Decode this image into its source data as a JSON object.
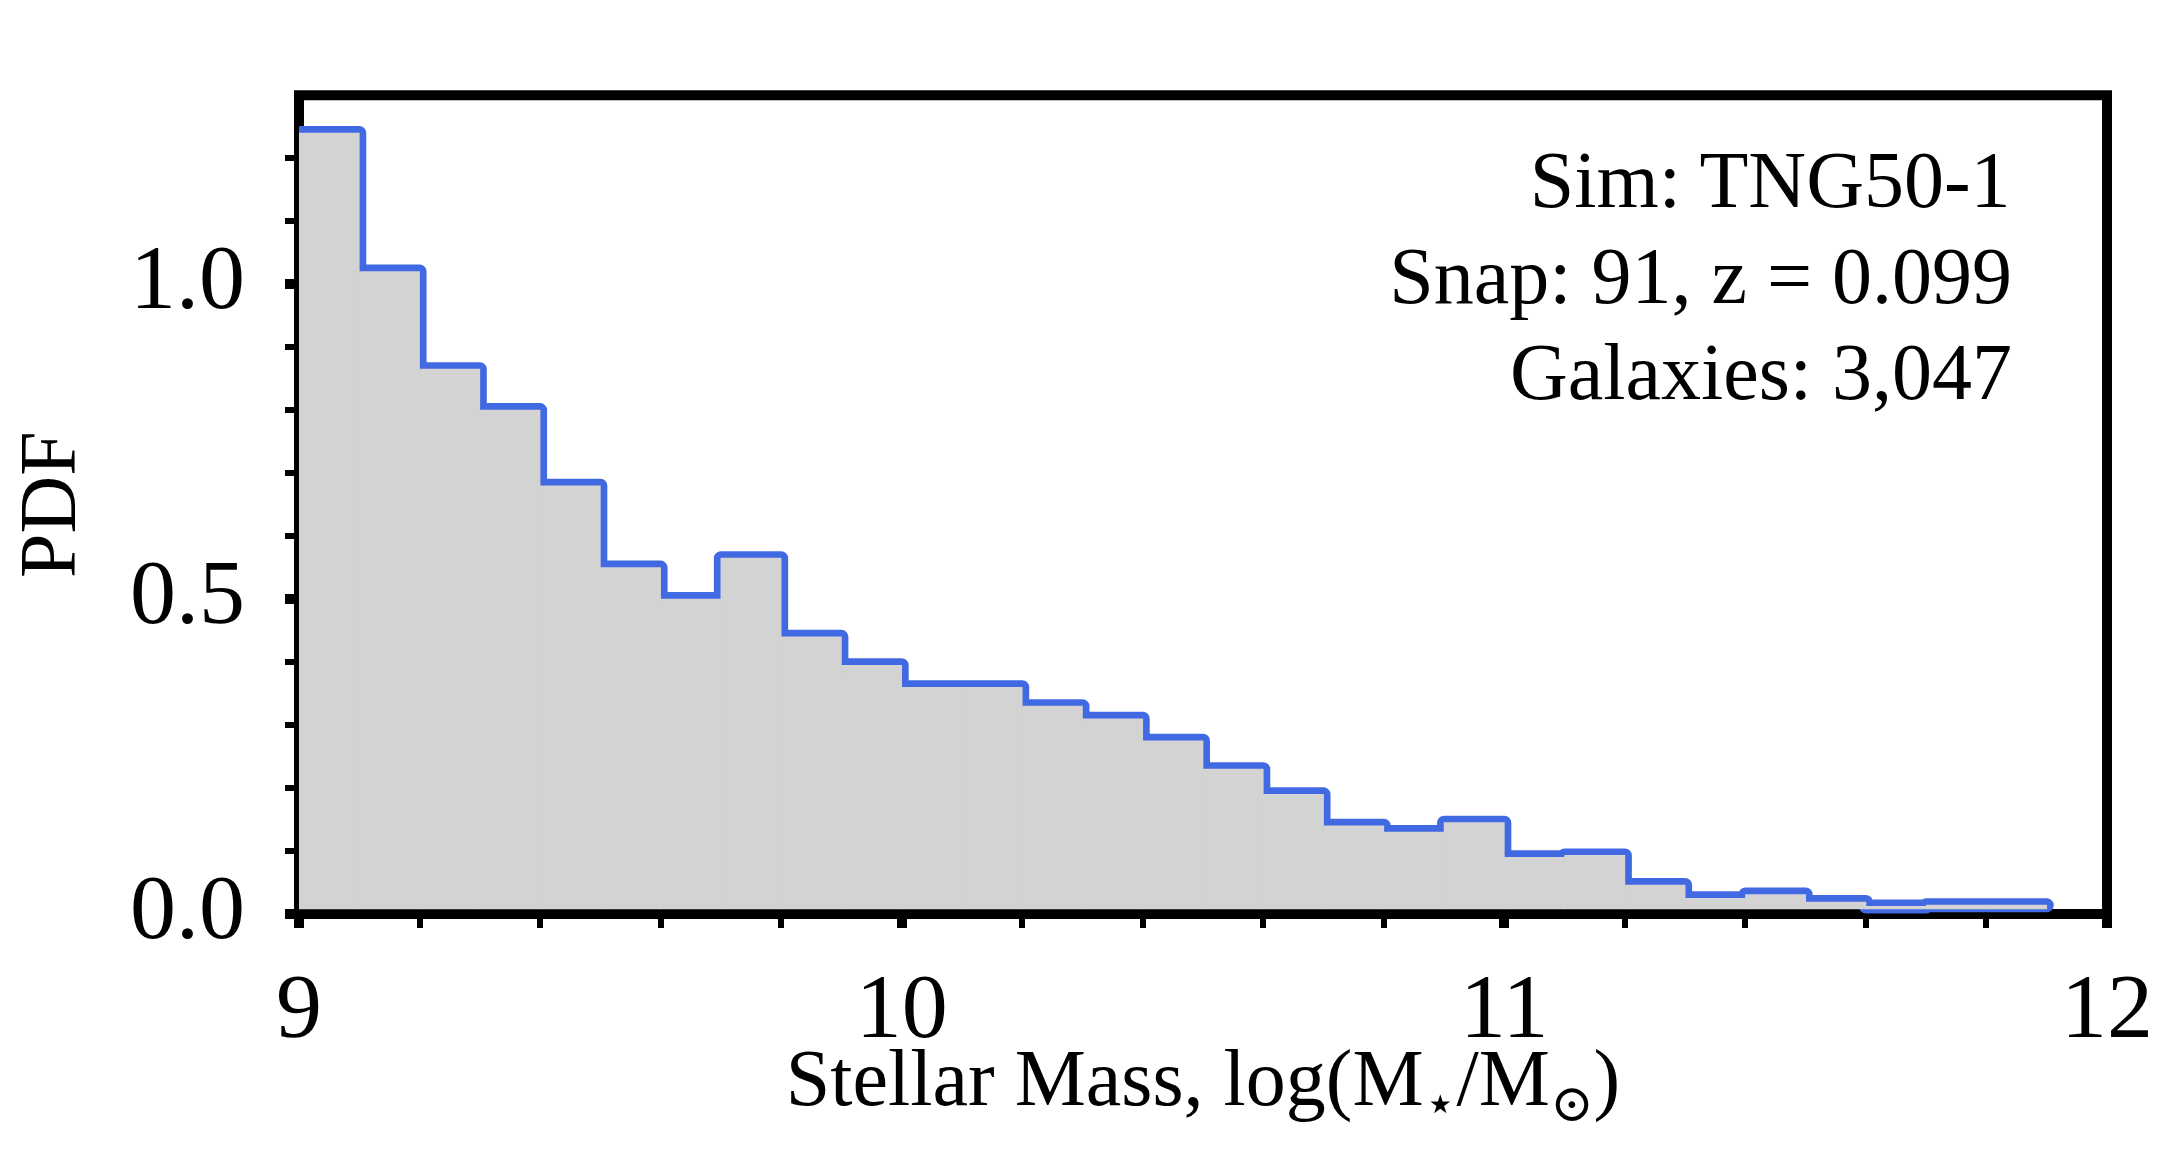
{
  "chart_data": {
    "type": "histogram",
    "xlabel": "Stellar Mass, log(M$_{⋆}$/M$_{⊙}$)",
    "ylabel": "PDF",
    "annotations": [
      "Sim: TNG50-1",
      "Snap: 91, z = 0.099",
      "Galaxies: 3,047"
    ],
    "series": [
      {
        "type": "histogram",
        "color": "#d3d3d3",
        "bins": [
          9.0,
          9.1,
          9.2,
          9.3,
          9.4,
          9.5,
          9.6,
          9.7,
          9.8,
          9.9,
          10.0,
          10.1,
          10.2,
          10.3,
          10.4,
          10.5,
          10.6,
          10.7,
          10.8,
          10.9,
          11.0,
          11.1,
          11.2,
          11.3,
          11.4,
          11.5,
          11.6,
          11.7,
          11.8,
          11.9
        ],
        "values": [
          1.24,
          1.02,
          0.865,
          0.8,
          0.68,
          0.55,
          0.5,
          0.565,
          0.44,
          0.395,
          0.36,
          0.36,
          0.33,
          0.31,
          0.275,
          0.23,
          0.19,
          0.14,
          0.13,
          0.145,
          0.09,
          0.093,
          0.046,
          0.025,
          0.031,
          0.019,
          0.012,
          0.014,
          0.014
        ]
      },
      {
        "type": "step",
        "color": "#4169e1",
        "x": [
          9.0,
          9.1,
          9.2,
          9.3,
          9.4,
          9.5,
          9.6,
          9.7,
          9.8,
          9.9,
          10.0,
          10.1,
          10.2,
          10.3,
          10.4,
          10.5,
          10.6,
          10.7,
          10.8,
          10.9,
          11.0,
          11.1,
          11.2,
          11.3,
          11.4,
          11.5,
          11.6,
          11.7,
          11.8,
          11.9
        ],
        "values": [
          1.24,
          1.02,
          0.865,
          0.8,
          0.68,
          0.55,
          0.5,
          0.565,
          0.44,
          0.395,
          0.36,
          0.36,
          0.33,
          0.31,
          0.275,
          0.23,
          0.19,
          0.14,
          0.13,
          0.145,
          0.09,
          0.093,
          0.046,
          0.025,
          0.031,
          0.019,
          0.012,
          0.014,
          0.014,
          0.014
        ]
      }
    ],
    "xlim": [
      9,
      12
    ],
    "ylim": [
      0,
      1.3
    ],
    "xticks": [
      9,
      {
        "value": 9.2,
        "label": null
      },
      {
        "value": 9.4,
        "label": null
      },
      {
        "value": 9.6,
        "label": null
      },
      {
        "value": 9.8,
        "label": null
      },
      10,
      {
        "value": 10.2,
        "label": null
      },
      {
        "value": 10.4,
        "label": null
      },
      {
        "value": 10.6,
        "label": null
      },
      {
        "value": 10.8,
        "label": null
      },
      11,
      {
        "value": 11.2,
        "label": null
      },
      {
        "value": 11.4,
        "label": null
      },
      {
        "value": 11.6,
        "label": null
      },
      {
        "value": 11.8,
        "label": null
      },
      12
    ],
    "yticks": [
      {
        "value": 0,
        "label": "0.0"
      },
      {
        "value": 0.1,
        "label": null
      },
      {
        "value": 0.2,
        "label": null
      },
      {
        "value": 0.3,
        "label": null
      },
      {
        "value": 0.4,
        "label": null
      },
      {
        "value": 0.5,
        "label": "0.5"
      },
      {
        "value": 0.6,
        "label": null
      },
      {
        "value": 0.7,
        "label": null
      },
      {
        "value": 0.8,
        "label": null
      },
      {
        "value": 0.9,
        "label": null
      },
      {
        "value": 1,
        "label": "1.0"
      },
      {
        "value": 1.1,
        "label": null
      },
      {
        "value": 1.2,
        "label": null
      }
    ]
  }
}
